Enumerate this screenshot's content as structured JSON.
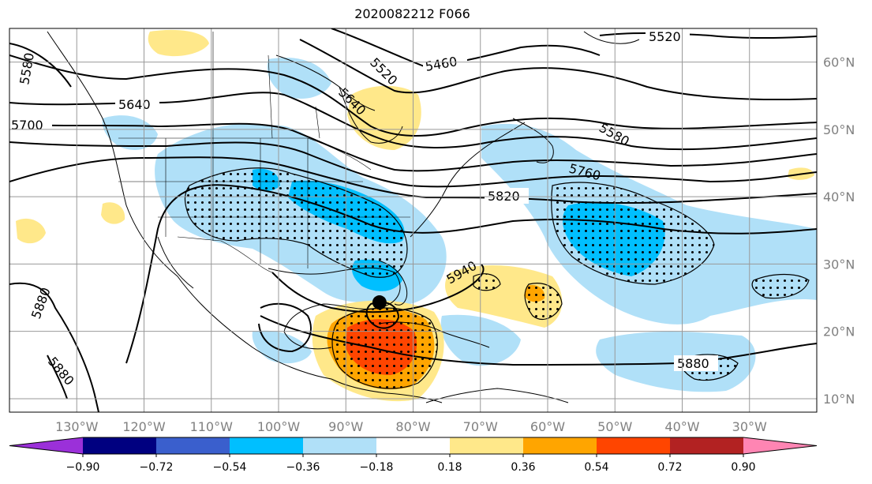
{
  "title": "2020082212 F066",
  "map": {
    "lon_range": [
      -140,
      -20
    ],
    "lat_range": [
      8,
      65
    ],
    "lon_labels": [
      "130°W",
      "120°W",
      "110°W",
      "100°W",
      "90°W",
      "80°W",
      "70°W",
      "60°W",
      "50°W",
      "40°W",
      "30°W"
    ],
    "lat_labels": [
      "60°N",
      "50°N",
      "40°N",
      "30°N",
      "20°N",
      "10°N"
    ],
    "contour_labels": [
      "5520",
      "5460",
      "5520",
      "5580",
      "5640",
      "5640",
      "5700",
      "5580",
      "5760",
      "5820",
      "5940",
      "5880",
      "5880",
      "5880"
    ],
    "storm_marker": {
      "lon": -85,
      "lat": 24.3
    }
  },
  "colorbar": {
    "tick_labels": [
      "−0.90",
      "−0.72",
      "−0.54",
      "−0.36",
      "−0.18",
      "0.18",
      "0.36",
      "0.54",
      "0.72",
      "0.90"
    ],
    "colors": [
      "#9b30d9",
      "#000080",
      "#3a5fcd",
      "#00bfff",
      "#b0e0f8",
      "#ffffff",
      "#ffe88a",
      "#ffa500",
      "#ff4500",
      "#b22222",
      "#ff85b3"
    ]
  }
}
